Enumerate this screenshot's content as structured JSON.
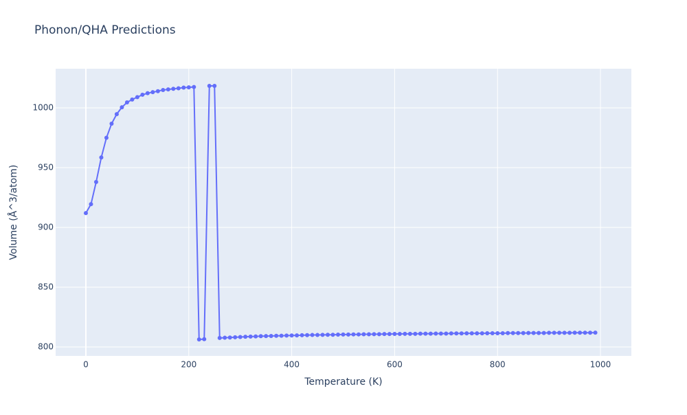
{
  "chart_data": {
    "type": "line",
    "title": "Phonon/QHA Predictions",
    "x_label": "Temperature (K)",
    "y_label": "Volume (Å^3/atom)",
    "x": [
      0,
      10,
      20,
      30,
      40,
      50,
      60,
      70,
      80,
      90,
      100,
      110,
      120,
      130,
      140,
      150,
      160,
      170,
      180,
      190,
      200,
      210,
      220,
      230,
      240,
      250,
      260,
      270,
      280,
      290,
      300,
      310,
      320,
      330,
      340,
      350,
      360,
      370,
      380,
      390,
      400,
      410,
      420,
      430,
      440,
      450,
      460,
      470,
      480,
      490,
      500,
      510,
      520,
      530,
      540,
      550,
      560,
      570,
      580,
      590,
      600,
      610,
      620,
      630,
      640,
      650,
      660,
      670,
      680,
      690,
      700,
      710,
      720,
      730,
      740,
      750,
      760,
      770,
      780,
      790,
      800,
      810,
      820,
      830,
      840,
      850,
      860,
      870,
      880,
      890,
      900,
      910,
      920,
      930,
      940,
      950,
      960,
      970,
      980,
      990
    ],
    "series": [
      {
        "color": "#636efa",
        "values": [
          912,
          919.5,
          938,
          958.6,
          975,
          986.8,
          994.8,
          1000.5,
          1004.6,
          1007,
          1009,
          1011,
          1012.3,
          1013.2,
          1014,
          1015,
          1015.5,
          1016,
          1016.4,
          1017,
          1017.2,
          1017.5,
          806.3,
          806.5,
          1018.4,
          1018.4,
          807.5,
          807.7,
          807.9,
          808.1,
          808.3,
          808.5,
          808.7,
          808.8,
          809.0,
          809.1,
          809.2,
          809.3,
          809.4,
          809.5,
          809.6,
          809.7,
          809.8,
          809.9,
          810.0,
          810.0,
          810.1,
          810.2,
          810.2,
          810.3,
          810.4,
          810.4,
          810.5,
          810.5,
          810.6,
          810.6,
          810.7,
          810.7,
          810.8,
          810.8,
          810.9,
          810.9,
          811.0,
          811.0,
          811.0,
          811.1,
          811.1,
          811.1,
          811.2,
          811.2,
          811.2,
          811.3,
          811.3,
          811.3,
          811.4,
          811.4,
          811.4,
          811.4,
          811.5,
          811.5,
          811.5,
          811.5,
          811.6,
          811.6,
          811.6,
          811.6,
          811.7,
          811.7,
          811.7,
          811.7,
          811.8,
          811.8,
          811.8,
          811.8,
          811.8,
          811.9,
          811.9,
          811.9,
          811.9,
          812.0
        ]
      }
    ],
    "xlim": [
      -58.7,
      1060
    ],
    "xticks": [
      0,
      200,
      400,
      600,
      800,
      1000
    ],
    "ylim": [
      792.5,
      1032.8
    ],
    "yticks": [
      800,
      850,
      900,
      950,
      1000
    ],
    "grid": true
  }
}
